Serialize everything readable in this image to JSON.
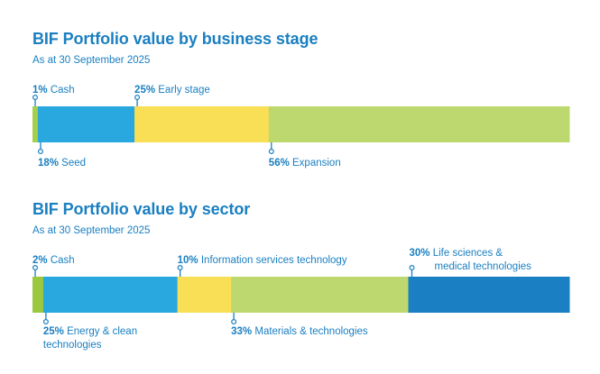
{
  "chart_data": [
    {
      "type": "bar",
      "orientation": "horizontal-stacked-100",
      "title": "BIF Portfolio value by business stage",
      "subtitle": "As at 30 September 2025",
      "categories": [
        "Cash",
        "Seed",
        "Early stage",
        "Expansion"
      ],
      "values": [
        1,
        18,
        25,
        56
      ],
      "unit": "%",
      "colors": [
        "#a6cf4a",
        "#29a8e0",
        "#f9df55",
        "#bdd86e"
      ],
      "labels": [
        {
          "pct": "1%",
          "text": "Cash",
          "lines": [
            "Cash"
          ],
          "side": "top"
        },
        {
          "pct": "18%",
          "text": "Seed",
          "lines": [
            "Seed"
          ],
          "side": "bottom"
        },
        {
          "pct": "25%",
          "text": "Early stage",
          "lines": [
            "Early stage"
          ],
          "side": "top"
        },
        {
          "pct": "56%",
          "text": "Expansion",
          "lines": [
            "Expansion"
          ],
          "side": "bottom"
        }
      ]
    },
    {
      "type": "bar",
      "orientation": "horizontal-stacked-100",
      "title": "BIF Portfolio value by sector",
      "subtitle": "As at 30 September 2025",
      "categories": [
        "Cash",
        "Energy & clean technologies",
        "Information services technology",
        "Materials & technologies",
        "Life sciences & medical technologies"
      ],
      "values": [
        2,
        25,
        10,
        33,
        30
      ],
      "unit": "%",
      "colors": [
        "#9cc83f",
        "#29a8e0",
        "#f9df55",
        "#bdd86e",
        "#1a80c3"
      ],
      "labels": [
        {
          "pct": "2%",
          "text": "Cash",
          "lines": [
            "Cash"
          ],
          "side": "top"
        },
        {
          "pct": "25%",
          "text": "Energy & clean technologies",
          "lines": [
            "Energy & clean",
            "technologies"
          ],
          "side": "bottom"
        },
        {
          "pct": "10%",
          "text": "Information services technology",
          "lines": [
            "Information services technology"
          ],
          "side": "top"
        },
        {
          "pct": "33%",
          "text": "Materials & technologies",
          "lines": [
            "Materials & technologies"
          ],
          "side": "bottom"
        },
        {
          "pct": "30%",
          "text": "Life sciences & medical technologies",
          "lines": [
            "Life sciences &",
            "medical technologies"
          ],
          "side": "top"
        }
      ]
    }
  ],
  "accent_color": "#1a7fc1"
}
